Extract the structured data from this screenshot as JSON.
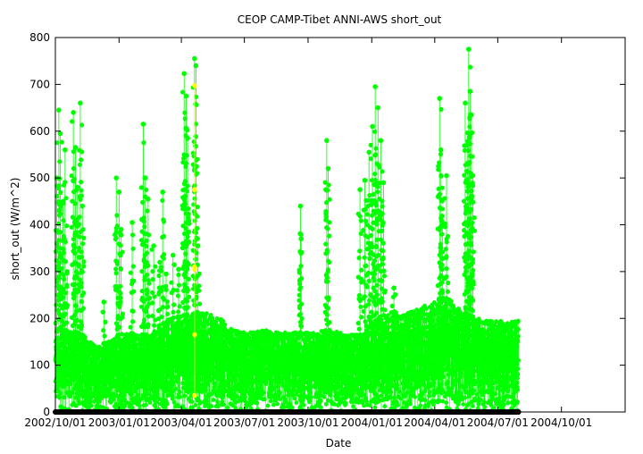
{
  "chart_data": {
    "type": "scatter",
    "title": "CEOP CAMP-Tibet ANNI-AWS  short_out",
    "xlabel": "Date",
    "ylabel": "short_out (W/m^2)",
    "xlim": [
      "2002-10-01",
      "2005-01-01"
    ],
    "ylim": [
      0,
      800
    ],
    "x_ticks": [
      "2002/10/01",
      "2003/01/01",
      "2003/04/01",
      "2003/07/01",
      "2003/10/01",
      "2004/01/01",
      "2004/04/01",
      "2004/07/01",
      "2004/10/01"
    ],
    "y_ticks": [
      0,
      100,
      200,
      300,
      400,
      500,
      600,
      700,
      800
    ],
    "grid": false,
    "legend": "none",
    "colors": {
      "main": "#00ff00",
      "flagged": "#ffff00",
      "zero": "#000000"
    },
    "data_range": [
      "2002-10-01",
      "2004-07-31"
    ],
    "series": [
      {
        "color": "#00ff00",
        "envelope": {
          "dates": [
            "2002-10-01",
            "2002-10-15",
            "2002-11-01",
            "2002-11-15",
            "2002-12-01",
            "2002-12-15",
            "2003-01-01",
            "2003-01-15",
            "2003-02-01",
            "2003-02-15",
            "2003-03-01",
            "2003-03-15",
            "2003-04-01",
            "2003-04-15",
            "2003-05-01",
            "2003-05-15",
            "2003-06-01",
            "2003-06-15",
            "2003-07-01",
            "2003-08-01",
            "2003-09-01",
            "2003-10-01",
            "2003-11-01",
            "2003-12-01",
            "2003-12-20",
            "2004-01-01",
            "2004-01-15",
            "2004-02-01",
            "2004-02-15",
            "2004-03-01",
            "2004-03-15",
            "2004-04-01",
            "2004-04-15",
            "2004-05-01",
            "2004-05-15",
            "2004-06-01",
            "2004-06-15",
            "2004-07-01",
            "2004-07-31"
          ],
          "upper": [
            150,
            175,
            170,
            160,
            140,
            150,
            165,
            170,
            165,
            165,
            185,
            200,
            205,
            210,
            215,
            210,
            195,
            175,
            170,
            175,
            170,
            170,
            175,
            165,
            165,
            190,
            205,
            215,
            210,
            215,
            225,
            240,
            245,
            235,
            210,
            200,
            195,
            195,
            195
          ]
        },
        "spikes": [
          {
            "x": "2002-10-03",
            "y": 500
          },
          {
            "x": "2002-10-06",
            "y": 645
          },
          {
            "x": "2002-10-08",
            "y": 595
          },
          {
            "x": "2002-10-12",
            "y": 450
          },
          {
            "x": "2002-10-15",
            "y": 560
          },
          {
            "x": "2002-10-18",
            "y": 300
          },
          {
            "x": "2002-10-27",
            "y": 640
          },
          {
            "x": "2002-10-30",
            "y": 565
          },
          {
            "x": "2002-11-02",
            "y": 480
          },
          {
            "x": "2002-11-06",
            "y": 660
          },
          {
            "x": "2002-11-09",
            "y": 440
          },
          {
            "x": "2002-12-10",
            "y": 235
          },
          {
            "x": "2002-12-28",
            "y": 500
          },
          {
            "x": "2003-01-01",
            "y": 470
          },
          {
            "x": "2003-01-04",
            "y": 390
          },
          {
            "x": "2003-01-20",
            "y": 405
          },
          {
            "x": "2003-02-05",
            "y": 615
          },
          {
            "x": "2003-02-08",
            "y": 500
          },
          {
            "x": "2003-02-12",
            "y": 455
          },
          {
            "x": "2003-02-20",
            "y": 355
          },
          {
            "x": "2003-03-01",
            "y": 320
          },
          {
            "x": "2003-03-05",
            "y": 470
          },
          {
            "x": "2003-03-10",
            "y": 295
          },
          {
            "x": "2003-03-20",
            "y": 335
          },
          {
            "x": "2003-03-28",
            "y": 305
          },
          {
            "x": "2003-04-05",
            "y": 723
          },
          {
            "x": "2003-04-08",
            "y": 675
          },
          {
            "x": "2003-04-10",
            "y": 585
          },
          {
            "x": "2003-04-20",
            "y": 755
          },
          {
            "x": "2003-04-22",
            "y": 740
          },
          {
            "x": "2003-04-25",
            "y": 355
          },
          {
            "x": "2003-09-20",
            "y": 440
          },
          {
            "x": "2003-09-21",
            "y": 370
          },
          {
            "x": "2003-10-28",
            "y": 580
          },
          {
            "x": "2003-10-30",
            "y": 520
          },
          {
            "x": "2003-12-15",
            "y": 475
          },
          {
            "x": "2003-12-22",
            "y": 495
          },
          {
            "x": "2003-12-28",
            "y": 555
          },
          {
            "x": "2004-01-02",
            "y": 610
          },
          {
            "x": "2004-01-06",
            "y": 695
          },
          {
            "x": "2004-01-10",
            "y": 650
          },
          {
            "x": "2004-01-14",
            "y": 580
          },
          {
            "x": "2004-01-18",
            "y": 490
          },
          {
            "x": "2004-02-02",
            "y": 265
          },
          {
            "x": "2004-04-08",
            "y": 670
          },
          {
            "x": "2004-04-10",
            "y": 560
          },
          {
            "x": "2004-04-12",
            "y": 400
          },
          {
            "x": "2004-04-18",
            "y": 505
          },
          {
            "x": "2004-05-15",
            "y": 660
          },
          {
            "x": "2004-05-18",
            "y": 570
          },
          {
            "x": "2004-05-20",
            "y": 775
          },
          {
            "x": "2004-05-22",
            "y": 685
          },
          {
            "x": "2004-05-24",
            "y": 635
          },
          {
            "x": "2004-05-26",
            "y": 505
          }
        ]
      },
      {
        "color": "#ffff00",
        "points": [
          {
            "x": "2003-04-20",
            "y": 697
          },
          {
            "x": "2003-04-20",
            "y": 475
          },
          {
            "x": "2003-04-20",
            "y": 310
          },
          {
            "x": "2003-04-20",
            "y": 305
          },
          {
            "x": "2003-04-20",
            "y": 165
          },
          {
            "x": "2003-04-20",
            "y": 35
          }
        ]
      }
    ]
  }
}
